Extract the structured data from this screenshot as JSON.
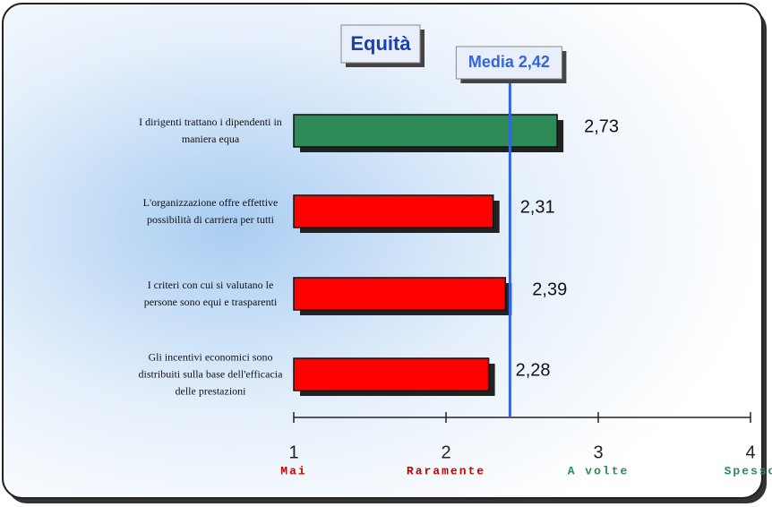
{
  "chart_data": {
    "type": "bar",
    "orientation": "horizontal",
    "title": "Equità",
    "categories": [
      "I dirigenti trattano i dipendenti in maniera equa",
      "L'organizzazione offre effettive possibilità di carriera per tutti",
      "I criteri con cui si valutano le persone sono equi e trasparenti",
      "Gli incentivi economici sono distribuiti sulla base dell'efficacia delle prestazioni"
    ],
    "values": [
      2.73,
      2.31,
      2.39,
      2.28
    ],
    "value_labels": [
      "2,73",
      "2,31",
      "2,39",
      "2,28"
    ],
    "colors": [
      "#2e8b57",
      "#ff0000",
      "#ff0000",
      "#ff0000"
    ],
    "xlim": [
      1,
      4
    ],
    "xticks": [
      1,
      2,
      3,
      4
    ],
    "tick_descriptions": [
      "Mai",
      "Raramente",
      "A volte",
      "Spesso"
    ],
    "tick_description_colors": [
      "#cc0000",
      "#cc0000",
      "#2e8b57",
      "#2e8b57"
    ],
    "reference_line": {
      "label": "Media 2,42",
      "value": 2.42,
      "color": "#3366dd"
    }
  }
}
